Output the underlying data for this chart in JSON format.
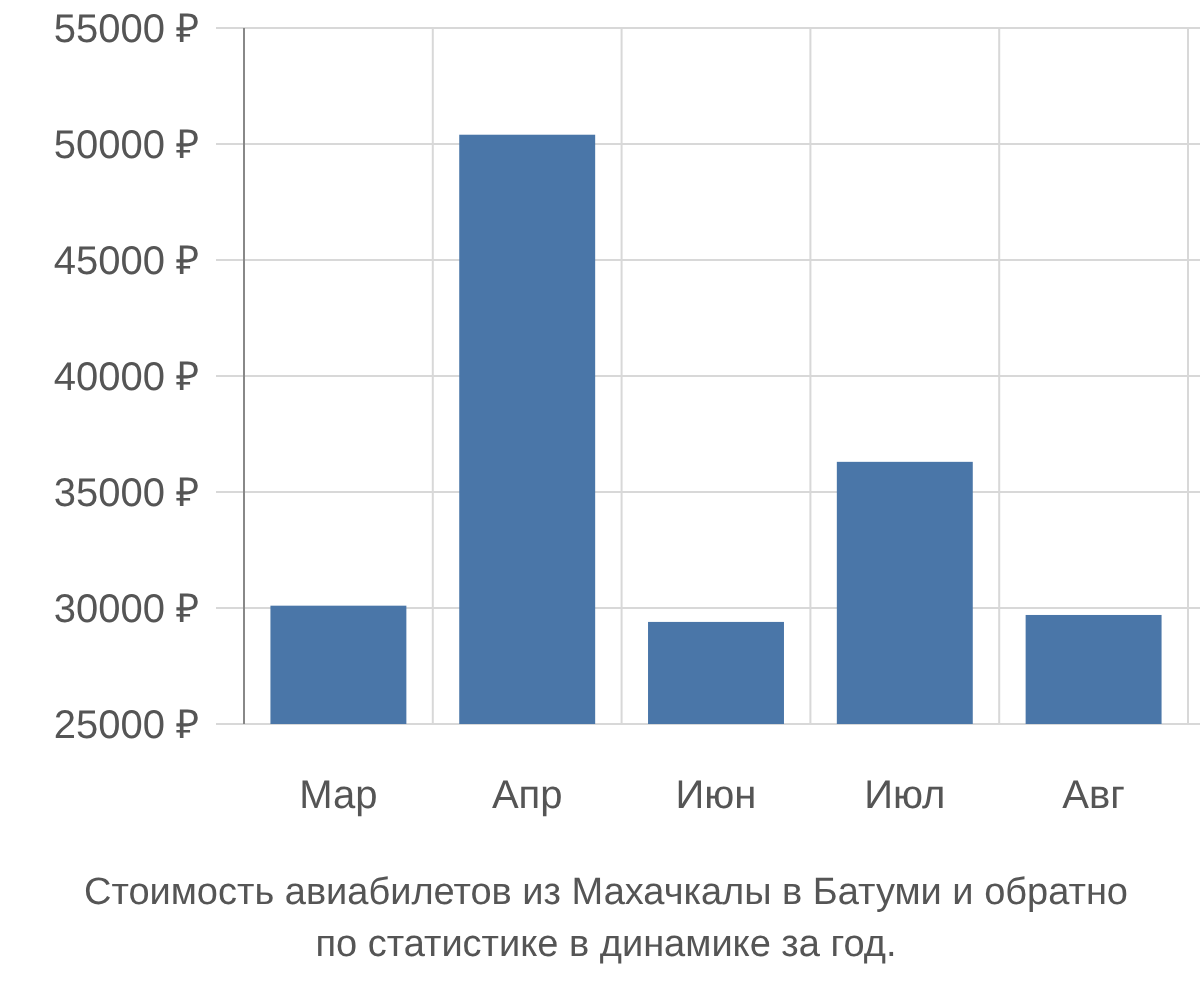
{
  "chart_data": {
    "type": "bar",
    "categories": [
      "Мар",
      "Апр",
      "Июн",
      "Июл",
      "Авг"
    ],
    "values": [
      30100,
      50400,
      29400,
      36300,
      29700
    ],
    "color": "#4a76a8",
    "ylim": [
      25000,
      55000
    ],
    "yticks": [
      {
        "value": 25000,
        "label": "25000 ₽"
      },
      {
        "value": 30000,
        "label": "30000 ₽"
      },
      {
        "value": 35000,
        "label": "35000 ₽"
      },
      {
        "value": 40000,
        "label": "40000 ₽"
      },
      {
        "value": 45000,
        "label": "45000 ₽"
      },
      {
        "value": 50000,
        "label": "50000 ₽"
      },
      {
        "value": 55000,
        "label": "55000 ₽"
      }
    ],
    "grid": true,
    "annotations": [
      "Стоимость авиабилетов из Махачкалы в Батуми и обратно",
      "по статистике в динамике за год."
    ]
  }
}
